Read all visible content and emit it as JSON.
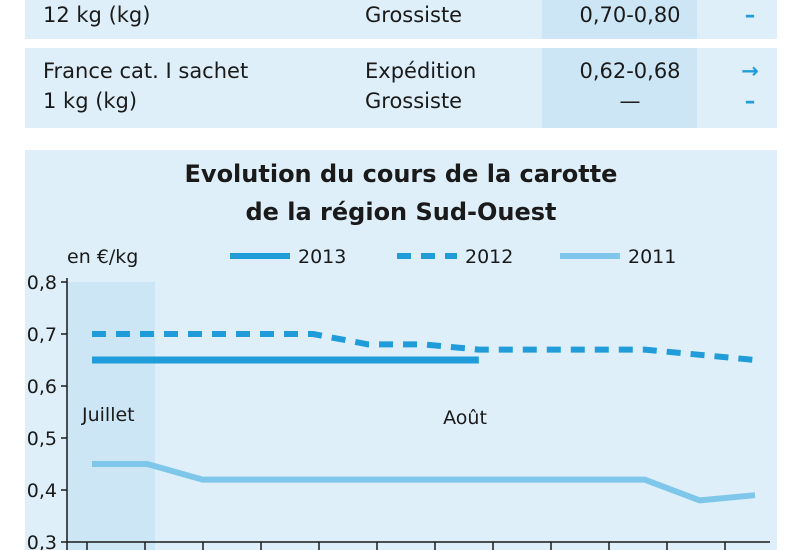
{
  "table": {
    "rows": [
      {
        "product": [
          "12 kg (kg)"
        ],
        "stage": [
          "Grossiste"
        ],
        "price": [
          "0,70-0,80"
        ],
        "trend": [
          "–"
        ]
      },
      {
        "product": [
          "France cat. I sachet",
          "1 kg (kg)"
        ],
        "stage": [
          "Expédition",
          "Grossiste"
        ],
        "price": [
          "0,62-0,68",
          "—"
        ],
        "trend": [
          "→",
          "–"
        ]
      }
    ]
  },
  "colors": {
    "line": "#1f9cd9",
    "line_2011": "#7fc7ea",
    "panel": "#deeff9",
    "band": "#cde6f5",
    "arrow": "#1f9cd9"
  },
  "chart_data": {
    "type": "line",
    "title": "Evolution du cours de la carotte",
    "subtitle": "de la région Sud-Ouest",
    "ylabel": "en €/kg",
    "ylim": [
      0.3,
      0.8
    ],
    "yticks": [
      "0,8",
      "0,7",
      "0,6",
      "0,5",
      "0,4",
      "0,3"
    ],
    "ytick_values": [
      0.8,
      0.7,
      0.6,
      0.5,
      0.4,
      0.3
    ],
    "period_labels": [
      "Juillet",
      "Août"
    ],
    "x": [
      1,
      2,
      3,
      4,
      5,
      6,
      7,
      8,
      9,
      10,
      11,
      12,
      13
    ],
    "series": [
      {
        "name": "2013",
        "style": "solid-thick",
        "values": [
          0.65,
          0.65,
          0.65,
          0.65,
          0.65,
          0.65,
          0.65,
          0.65,
          null,
          null,
          null,
          null,
          null
        ]
      },
      {
        "name": "2012",
        "style": "dashed",
        "values": [
          0.7,
          0.7,
          0.7,
          0.7,
          0.7,
          0.68,
          0.68,
          0.67,
          0.67,
          0.67,
          0.67,
          0.66,
          0.65
        ]
      },
      {
        "name": "2011",
        "style": "solid-light",
        "values": [
          0.45,
          0.45,
          0.42,
          0.42,
          0.42,
          0.42,
          0.42,
          0.42,
          0.42,
          0.42,
          0.42,
          0.38,
          0.39
        ]
      }
    ]
  }
}
